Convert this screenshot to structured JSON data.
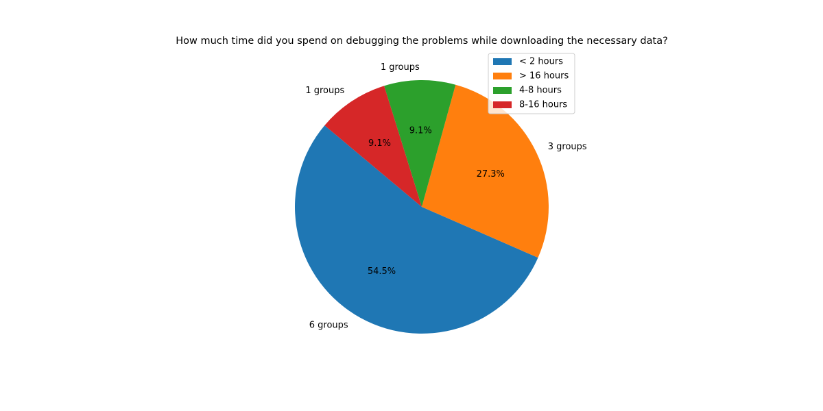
{
  "chart_data": {
    "type": "pie",
    "title": "How much time did you spend on debugging the problems while downloading the necessary data?",
    "categories": [
      "< 2 hours",
      "> 16 hours",
      "4-8 hours",
      "8-16 hours"
    ],
    "values": [
      6,
      3,
      1,
      1
    ],
    "value_labels": [
      "6 groups",
      "3 groups",
      "1 groups",
      "1 groups"
    ],
    "percent_labels": [
      "54.5%",
      "27.3%",
      "9.1%",
      "9.1%"
    ],
    "colors": [
      "#1f77b4",
      "#ff7f0e",
      "#2ca02c",
      "#d62728"
    ],
    "start_angle_deg": 140,
    "direction": "counterclockwise",
    "legend": {
      "placement": "upper-right",
      "entries": [
        "< 2 hours",
        "> 16 hours",
        "4-8 hours",
        "8-16 hours"
      ]
    }
  }
}
